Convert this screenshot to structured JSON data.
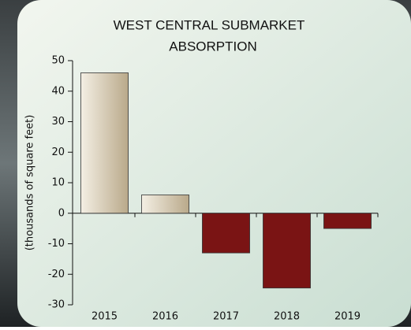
{
  "chart_data": {
    "type": "bar",
    "title": [
      "WEST  CENTRAL SUBMARKET",
      "ABSORPTION"
    ],
    "y_label": "(thousands of square feet)",
    "categories": [
      "2015",
      "2016",
      "2017",
      "2018",
      "2019"
    ],
    "values": [
      46,
      6,
      -13,
      -24.5,
      -5
    ],
    "positive_color": "#d8cdb6",
    "negative_color": "#7a1414",
    "ylim": [
      -30,
      50
    ],
    "yticks": [
      -30,
      -20,
      -10,
      0,
      10,
      20,
      30,
      40,
      50
    ],
    "grid": false
  }
}
